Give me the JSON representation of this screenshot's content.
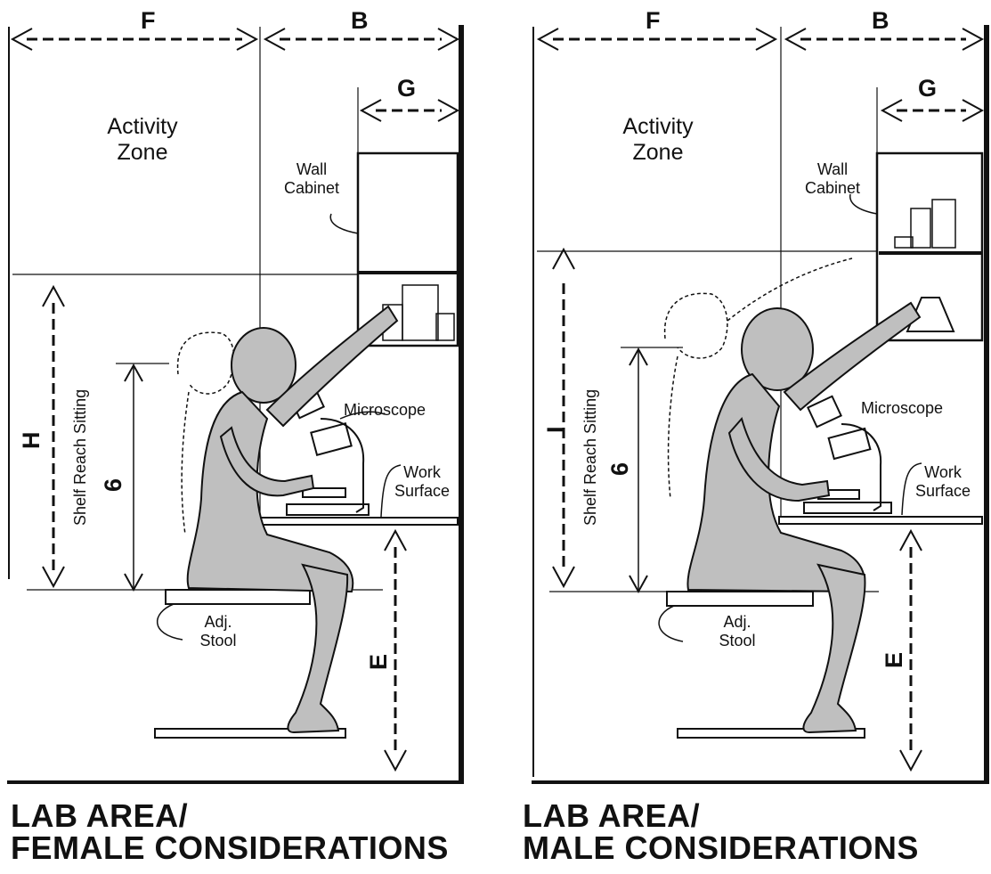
{
  "colors": {
    "ink": "#111111",
    "figure_fill": "#bfbfbf",
    "paper": "#ffffff"
  },
  "panels": [
    {
      "dims": {
        "F": "F",
        "B": "B",
        "G": "G",
        "H": "H",
        "six": "6",
        "E": "E"
      },
      "labels": {
        "activity_zone": "Activity Zone",
        "wall_cabinet": "Wall Cabinet",
        "microscope": "Microscope",
        "work_surface": "Work Surface",
        "adj_stool": "Adj. Stool",
        "shelf_reach": "Shelf Reach Sitting"
      },
      "caption_line1": "LAB AREA/",
      "caption_line2": "FEMALE CONSIDERATIONS"
    },
    {
      "dims": {
        "F": "F",
        "B": "B",
        "G": "G",
        "H": "I",
        "six": "6",
        "E": "E"
      },
      "labels": {
        "activity_zone": "Activity Zone",
        "wall_cabinet": "Wall Cabinet",
        "microscope": "Microscope",
        "work_surface": "Work Surface",
        "adj_stool": "Adj. Stool",
        "shelf_reach": "Shelf Reach Sitting"
      },
      "caption_line1": "LAB AREA/",
      "caption_line2": "MALE CONSIDERATIONS"
    }
  ]
}
